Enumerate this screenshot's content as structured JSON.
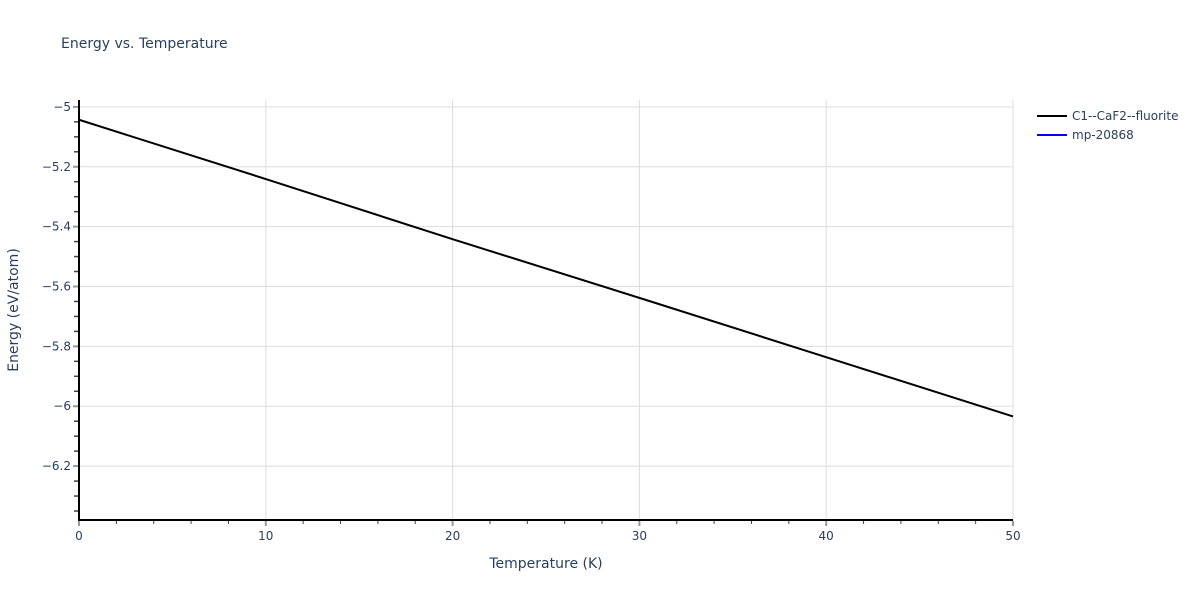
{
  "title": "Energy vs. Temperature",
  "colors": {
    "text": "#2a3f5f",
    "grid": "#dddddd",
    "axis": "#000000",
    "background": "#ffffff"
  },
  "legend": {
    "items": [
      {
        "label": "C1--CaF2--fluorite",
        "color": "#000000"
      },
      {
        "label": "mp-20868",
        "color": "#0000ff"
      }
    ]
  },
  "chart_data": {
    "type": "line",
    "title": "Energy vs. Temperature",
    "xlabel": "Temperature (K)",
    "ylabel": "Energy (eV/atom)",
    "xlim": [
      0,
      50
    ],
    "ylim": [
      -6.38,
      -4.977
    ],
    "x_ticks": [
      0,
      10,
      20,
      30,
      40,
      50
    ],
    "x_tick_labels": [
      "0",
      "10",
      "20",
      "30",
      "40",
      "50"
    ],
    "x_minor_step": 2,
    "y_ticks": [
      -5,
      -5.2,
      -5.4,
      -5.6,
      -5.8,
      -6,
      -6.2
    ],
    "y_tick_labels": [
      "−5",
      "−5.2",
      "−5.4",
      "−5.6",
      "−5.8",
      "−6",
      "−6.2"
    ],
    "y_minor_step": 0.05,
    "grid": true,
    "legend_position": "top-right-outside",
    "series": [
      {
        "name": "C1--CaF2--fluorite",
        "color": "#000000",
        "x": [
          0,
          10,
          20,
          30,
          40,
          50
        ],
        "y": [
          -5.043,
          -5.241,
          -5.442,
          -5.638,
          -5.836,
          -6.034
        ]
      },
      {
        "name": "mp-20868",
        "color": "#0000ff",
        "x": [],
        "y": []
      }
    ]
  }
}
